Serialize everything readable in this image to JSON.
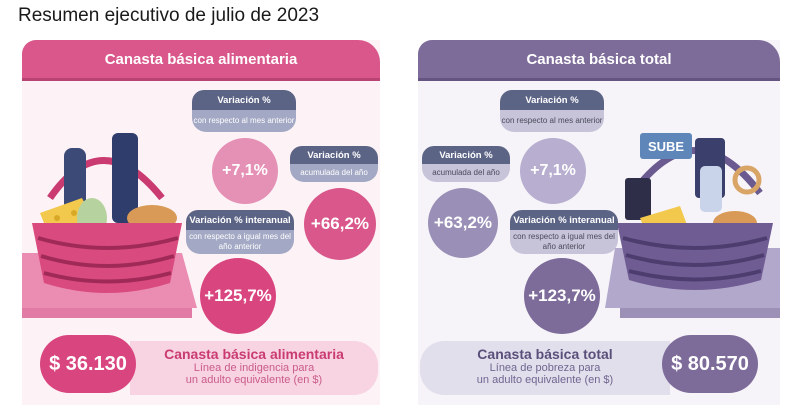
{
  "page_title": "Resumen ejecutivo de julio de 2023",
  "left": {
    "header": "Canasta básica alimentaria",
    "monthly": {
      "label": "Variación %",
      "sub": "con respecto al mes anterior",
      "value": "+7,1%"
    },
    "accumulated": {
      "label": "Variación %",
      "sub": "acumulada del año",
      "value": "+66,2%"
    },
    "interannual": {
      "label": "Variación % interanual",
      "sub": "con respecto a igual mes del año anterior",
      "value": "+125,7%"
    },
    "amount": "$ 36.130",
    "footer_title": "Canasta básica alimentaria",
    "footer_line1": "Línea de indigencia para",
    "footer_line2": "un adulto equivalente (en $)"
  },
  "right": {
    "header": "Canasta básica total",
    "monthly": {
      "label": "Variación %",
      "sub": "con respecto al mes anterior",
      "value": "+7,1%"
    },
    "accumulated": {
      "label": "Variación %",
      "sub": "acumulada del año",
      "value": "+63,2%"
    },
    "interannual": {
      "label": "Variación % interanual",
      "sub": "con respecto a igual mes del año anterior",
      "value": "+123,7%"
    },
    "amount": "$ 80.570",
    "footer_title": "Canasta básica total",
    "footer_line1": "Línea de pobreza para",
    "footer_line2": "un adulto equivalente (en $)"
  },
  "basket_card_text": "SUBE",
  "colors": {
    "pink_dark": "#d9578a",
    "pink_mid": "#e07aa5",
    "pink_light": "#f8d3e2",
    "purple_dark": "#7d6b99",
    "purple_mid": "#9c90b7",
    "purple_light": "#dcd7e8",
    "slate": "#5c6486",
    "slate_light": "#a3a8c4"
  }
}
